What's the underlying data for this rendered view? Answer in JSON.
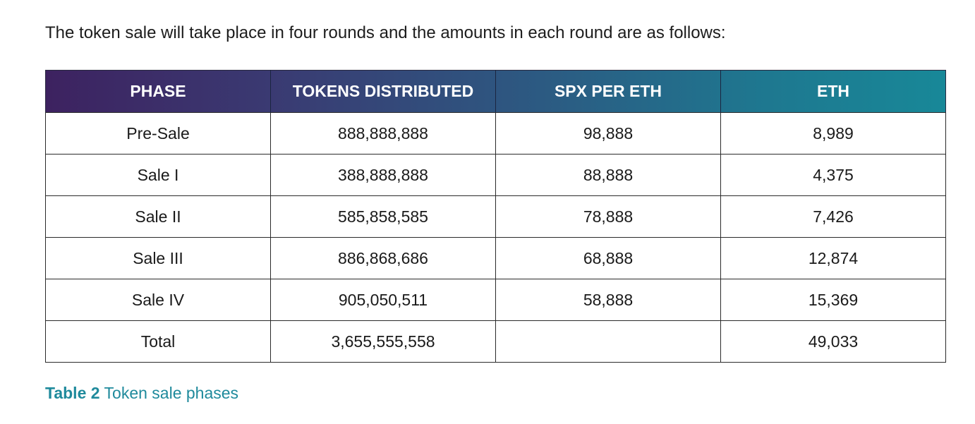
{
  "intro_text": "The token sale will take place in four rounds and the amounts in each round are as follows:",
  "table": {
    "headers": [
      "PHASE",
      "TOKENS DISTRIBUTED",
      "SPX PER ETH",
      "ETH"
    ],
    "rows": [
      [
        "Pre-Sale",
        "888,888,888",
        "98,888",
        "8,989"
      ],
      [
        "Sale I",
        "388,888,888",
        "88,888",
        "4,375"
      ],
      [
        "Sale II",
        "585,858,585",
        "78,888",
        "7,426"
      ],
      [
        "Sale III",
        "886,868,686",
        "68,888",
        "12,874"
      ],
      [
        "Sale IV",
        "905,050,511",
        "58,888",
        "15,369"
      ],
      [
        "Total",
        "3,655,555,558",
        "",
        "49,033"
      ]
    ]
  },
  "caption": {
    "label": "Table 2",
    "text": "Token sale phases"
  },
  "colors": {
    "header_gradient_start": "#3d2260",
    "header_gradient_end": "#188898",
    "caption": "#1f8a9c"
  }
}
